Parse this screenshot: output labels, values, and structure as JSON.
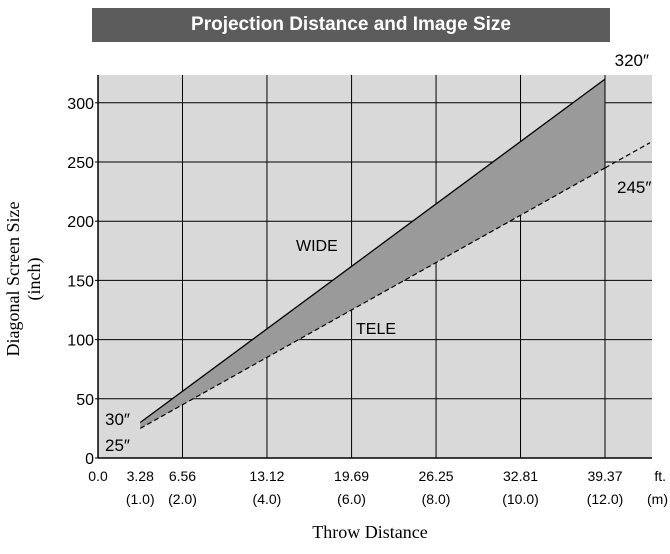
{
  "chart_data": {
    "type": "area",
    "title": "Projection Distance and Image Size",
    "xlabel": "Throw Distance",
    "ylabel": "Diagonal Screen Size (inch)",
    "xlim": [
      0,
      39.37
    ],
    "ylim": [
      0,
      320
    ],
    "grid": true,
    "x_ticks": [
      {
        "ft": "0.0",
        "m": ""
      },
      {
        "ft": "3.28",
        "m": "(1.0)"
      },
      {
        "ft": "6.56",
        "m": "(2.0)"
      },
      {
        "ft": "13.12",
        "m": "(4.0)"
      },
      {
        "ft": "19.69",
        "m": "(6.0)"
      },
      {
        "ft": "26.25",
        "m": "(8.0)"
      },
      {
        "ft": "32.81",
        "m": "(10.0)"
      },
      {
        "ft": "39.37",
        "m": "(12.0)"
      }
    ],
    "x_units": {
      "ft": "ft.",
      "m": "(m)"
    },
    "y_ticks": [
      0,
      50,
      100,
      150,
      200,
      250,
      300
    ],
    "series": [
      {
        "name": "WIDE",
        "x": [
          3.28,
          39.37
        ],
        "y": [
          30,
          320
        ],
        "style": "solid"
      },
      {
        "name": "TELE",
        "x": [
          3.28,
          39.37
        ],
        "y": [
          25,
          245
        ],
        "style": "dashed"
      }
    ],
    "annotations": [
      "320″",
      "245″",
      "30″",
      "25″"
    ]
  },
  "colors": {
    "plot_bg": "#d9d9d9",
    "fill": "#9a9a9a",
    "title_bg": "#5c5c5c"
  }
}
